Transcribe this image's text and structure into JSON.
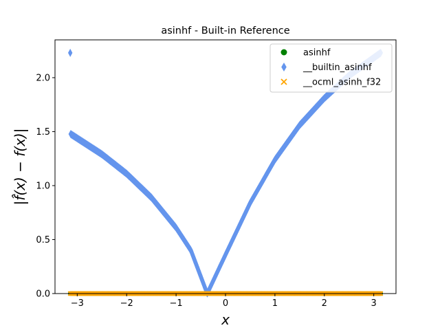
{
  "chart_data": {
    "type": "scatter",
    "title": "asinhf - Built-in Reference",
    "xlabel": "x",
    "ylabel": "|f̂(x) − f(x)|",
    "xlim": [
      -3.45,
      3.45
    ],
    "ylim": [
      0,
      2.35
    ],
    "xticks": [
      -3,
      -2,
      -1,
      0,
      1,
      2,
      3
    ],
    "xtick_labels": [
      "−3",
      "−2",
      "−1",
      "0",
      "1",
      "2",
      "3"
    ],
    "yticks": [
      0.0,
      0.5,
      1.0,
      1.5,
      2.0
    ],
    "ytick_labels": [
      "0.0",
      "0.5",
      "1.0",
      "1.5",
      "2.0"
    ],
    "grid": false,
    "legend_position": "top-right",
    "x_range": [
      -3.14159,
      3.14159
    ],
    "series": [
      {
        "name": "asinhf",
        "marker": "circle",
        "color": "#008000",
        "x": [
          -3.14,
          -2.5,
          -2.0,
          -1.5,
          -1.0,
          -0.5,
          0.0,
          0.5,
          1.0,
          1.5,
          2.0,
          2.5,
          3.14
        ],
        "y": [
          0,
          0,
          0,
          0,
          0,
          0,
          0,
          0,
          0,
          0,
          0,
          0,
          0
        ]
      },
      {
        "name": "__builtin_asinhf",
        "marker": "thin-diamond",
        "color": "#6495ed",
        "x": [
          -3.14,
          -2.5,
          -2.0,
          -1.5,
          -1.0,
          -0.7,
          -0.37,
          0.0,
          0.5,
          1.0,
          1.5,
          2.0,
          2.5,
          3.14
        ],
        "y": [
          1.48,
          1.29,
          1.11,
          0.89,
          0.61,
          0.4,
          0.0,
          0.36,
          0.84,
          1.24,
          1.56,
          1.81,
          2.02,
          2.23
        ]
      },
      {
        "name": "__ocml_asinh_f32",
        "marker": "x",
        "color": "#ffa500",
        "x": [
          -3.14,
          -2.5,
          -2.0,
          -1.5,
          -1.0,
          -0.5,
          0.0,
          0.5,
          1.0,
          1.5,
          2.0,
          2.5,
          3.14
        ],
        "y": [
          0,
          0,
          0,
          0,
          0,
          0,
          0,
          0,
          0,
          0,
          0,
          0,
          0
        ]
      }
    ]
  }
}
